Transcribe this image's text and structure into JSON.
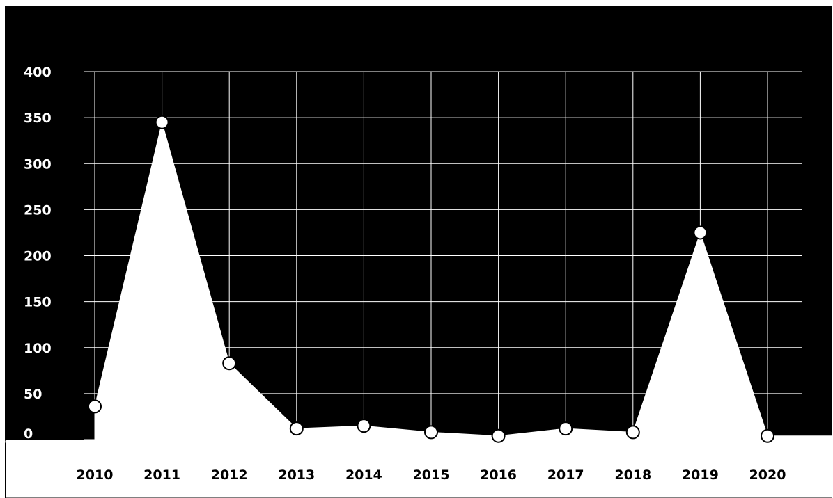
{
  "chart_data": {
    "type": "area",
    "title": "",
    "xlabel": "",
    "ylabel": "",
    "x": [
      "2010",
      "2011",
      "2012",
      "2013",
      "2014",
      "2015",
      "2016",
      "2017",
      "2018",
      "2019",
      "2020"
    ],
    "series": [
      {
        "values": [
          36,
          345,
          83,
          12,
          15,
          8,
          4,
          12,
          8,
          225,
          4
        ]
      }
    ],
    "y_ticks": [
      "0",
      "50",
      "100",
      "150",
      "200",
      "250",
      "300",
      "350",
      "400"
    ],
    "ylim": [
      0,
      400
    ],
    "grid": true,
    "legend": "none",
    "colors": {
      "plot_background": "#000000",
      "area_fill": "#ffffff",
      "gridline": "#ffffff",
      "marker_fill": "#ffffff",
      "marker_stroke": "#000000",
      "y_tick_text": "#ffffff",
      "x_tick_text": "#000000",
      "page_background": "#ffffff"
    }
  }
}
